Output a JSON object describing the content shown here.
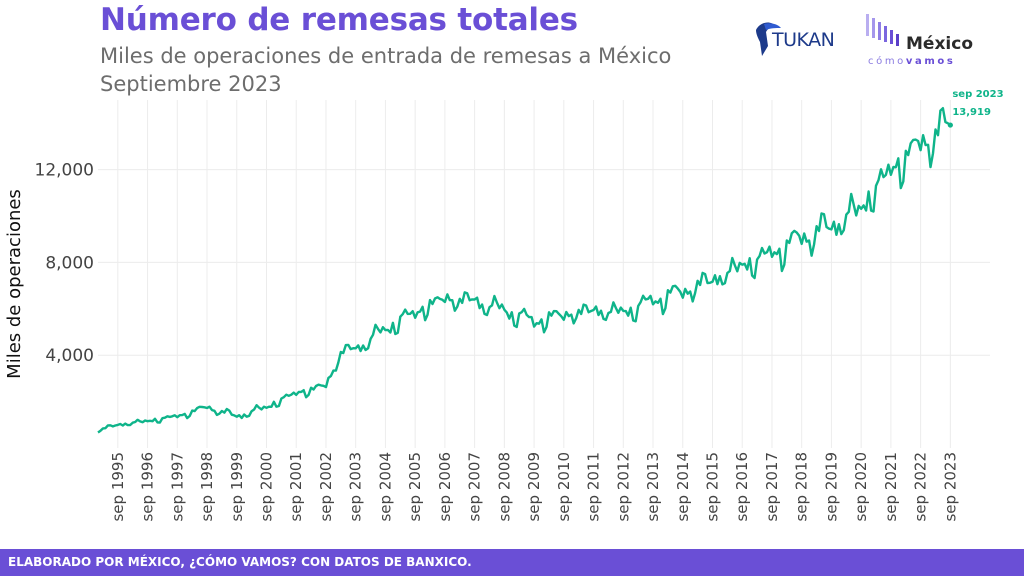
{
  "header": {
    "title": "Número de remesas totales",
    "subtitle_line1": "Miles de operaciones de entrada de remesas a México",
    "subtitle_line2": "Septiembre 2023"
  },
  "logos": {
    "tukan": "TUKAN",
    "mcv_main": "México",
    "mcv_sub_a": "cómo",
    "mcv_sub_b": "vamos"
  },
  "footer": {
    "credit": "ELABORADO POR MÉXICO, ¿CÓMO VAMOS? CON DATOS DE BANXICO."
  },
  "colors": {
    "line": "#0fb48a",
    "title": "#6a4fd6",
    "footer": "#6a4fd6",
    "grid": "#ececec"
  },
  "chart_data": {
    "type": "line",
    "title": "Número de remesas totales",
    "ylabel": "Miles de operaciones",
    "xlabel": "",
    "ylim": [
      0,
      15000
    ],
    "yticks": [
      4000,
      8000,
      12000
    ],
    "ytick_labels": [
      "4,000",
      "8,000",
      "12,000"
    ],
    "xticks": [
      "sep 1995",
      "sep 1996",
      "sep 1997",
      "sep 1998",
      "sep 1999",
      "sep 2000",
      "sep 2001",
      "sep 2002",
      "sep 2003",
      "sep 2004",
      "sep 2005",
      "sep 2006",
      "sep 2007",
      "sep 2008",
      "sep 2009",
      "sep 2010",
      "sep 2011",
      "sep 2012",
      "sep 2013",
      "sep 2014",
      "sep 2015",
      "sep 2016",
      "sep 2017",
      "sep 2018",
      "sep 2019",
      "sep 2020",
      "sep 2021",
      "sep 2022",
      "sep 2023"
    ],
    "grid": true,
    "annotation": {
      "date": "sep 2023",
      "value_label": "13,919"
    },
    "series": [
      {
        "start": "1995-01",
        "frequency": "monthly",
        "anchors": [
          [
            "1995-01",
            750
          ],
          [
            "1995-09",
            1000
          ],
          [
            "1996-09",
            1150
          ],
          [
            "1997-09",
            1350
          ],
          [
            "1998-09",
            1750
          ],
          [
            "1999-09",
            1350
          ],
          [
            "2000-09",
            1750
          ],
          [
            "2001-09",
            2350
          ],
          [
            "2002-09",
            2650
          ],
          [
            "2003-03",
            4100
          ],
          [
            "2003-09",
            4250
          ],
          [
            "2004-09",
            5100
          ],
          [
            "2005-09",
            5800
          ],
          [
            "2006-09",
            6400
          ],
          [
            "2007-09",
            6300
          ],
          [
            "2008-09",
            5900
          ],
          [
            "2009-09",
            5400
          ],
          [
            "2010-09",
            5700
          ],
          [
            "2011-09",
            5900
          ],
          [
            "2012-09",
            5800
          ],
          [
            "2013-09",
            6300
          ],
          [
            "2014-09",
            6700
          ],
          [
            "2015-09",
            7200
          ],
          [
            "2016-09",
            7800
          ],
          [
            "2017-09",
            8300
          ],
          [
            "2018-09",
            9000
          ],
          [
            "2019-09",
            9500
          ],
          [
            "2020-09",
            10300
          ],
          [
            "2021-09",
            11900
          ],
          [
            "2022-09",
            13000
          ],
          [
            "2023-09",
            13919
          ]
        ],
        "seasonal_amplitude": [
          [
            "1995-01",
            120
          ],
          [
            "2003-01",
            350
          ],
          [
            "2005-01",
            650
          ],
          [
            "2012-01",
            600
          ],
          [
            "2016-01",
            800
          ],
          [
            "2020-01",
            1100
          ],
          [
            "2023-09",
            1400
          ]
        ]
      }
    ]
  }
}
